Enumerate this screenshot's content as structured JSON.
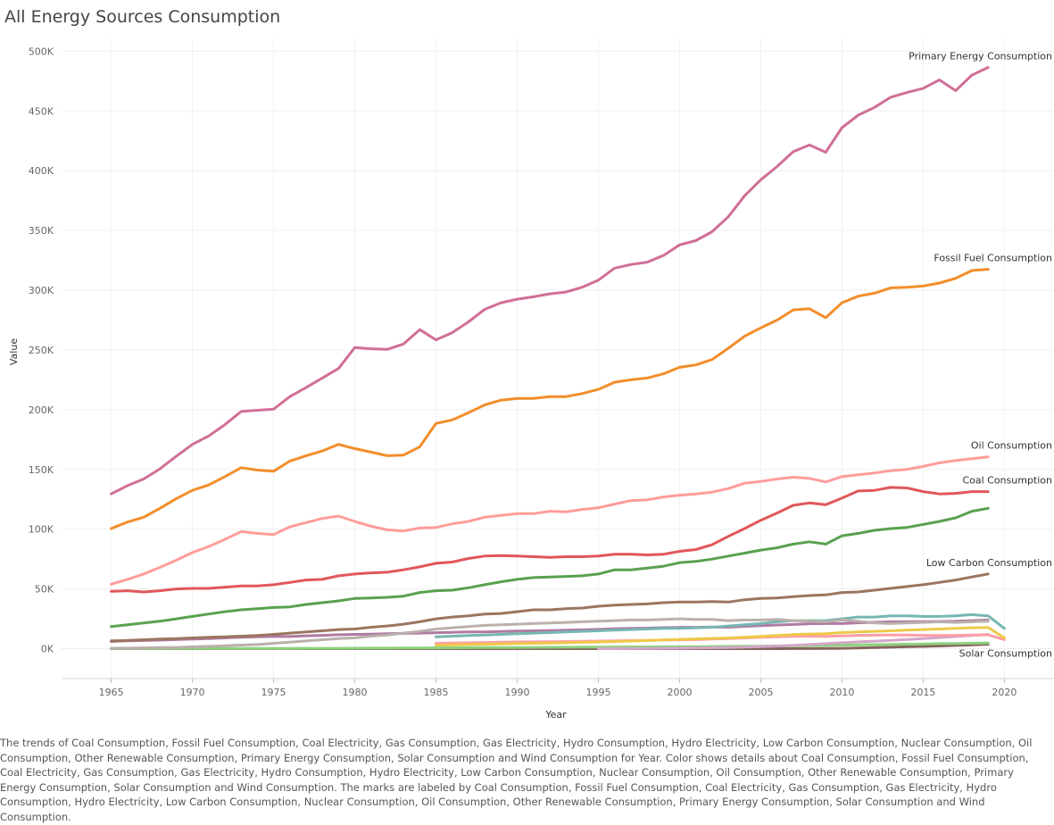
{
  "chart_data": {
    "type": "line",
    "title": "All Energy Sources Consumption",
    "xlabel": "Year",
    "ylabel": "Value",
    "xlim": [
      1962,
      2023
    ],
    "ylim": [
      -25000,
      510000
    ],
    "x_ticks": [
      1965,
      1970,
      1975,
      1980,
      1985,
      1990,
      1995,
      2000,
      2005,
      2010,
      2015,
      2020
    ],
    "y_ticks": [
      0,
      50000,
      100000,
      150000,
      200000,
      250000,
      300000,
      350000,
      400000,
      450000,
      500000
    ],
    "y_tick_labels": [
      "0K",
      "50K",
      "100K",
      "150K",
      "200K",
      "250K",
      "300K",
      "350K",
      "400K",
      "450K",
      "500K"
    ],
    "grid": true,
    "legend": "none (end-of-line labels)",
    "series": [
      {
        "name": "Primary Energy Consumption",
        "color": "#d06f97",
        "label": "Primary Energy Consumption",
        "x_start": 1965,
        "values": [
          129500,
          136500,
          142000,
          150500,
          161000,
          171000,
          178000,
          187500,
          198500,
          199500,
          200500,
          211000,
          218500,
          226500,
          234500,
          252000,
          251000,
          250500,
          255000,
          267000,
          258500,
          264500,
          273500,
          284000,
          289500,
          292500,
          294500,
          297000,
          298500,
          302500,
          308500,
          318500,
          321500,
          323500,
          329000,
          338000,
          341500,
          349000,
          361500,
          379000,
          392500,
          403500,
          416000,
          421500,
          415500,
          436000,
          446500,
          453000,
          461500,
          465500,
          469000,
          476000,
          467000,
          480000,
          486500
        ]
      },
      {
        "name": "Fossil Fuel Consumption",
        "color": "#f28e2b",
        "label": "Fossil Fuel Consumption",
        "x_start": 1965,
        "values": [
          100500,
          106000,
          110000,
          117500,
          125500,
          132500,
          137000,
          144000,
          151500,
          149500,
          148500,
          157000,
          161500,
          165500,
          171000,
          167500,
          164500,
          161500,
          162000,
          169000,
          188500,
          191500,
          197500,
          204000,
          208000,
          209500,
          209500,
          211000,
          211000,
          213500,
          217000,
          223000,
          225000,
          226500,
          230000,
          235500,
          237500,
          242000,
          251500,
          261500,
          268500,
          275000,
          283500,
          284500,
          277000,
          289500,
          295000,
          297500,
          302000,
          302500,
          303500,
          306000,
          310000,
          316500,
          317500
        ]
      },
      {
        "name": "Oil Consumption",
        "color": "#ff9d9a",
        "label": "Oil Consumption",
        "x_start": 1965,
        "values": [
          54000,
          58000,
          62500,
          68000,
          74000,
          80500,
          85500,
          91500,
          98000,
          96500,
          95500,
          102000,
          105500,
          109000,
          111000,
          106500,
          102500,
          99500,
          98500,
          101000,
          101500,
          104500,
          106500,
          110000,
          111500,
          113000,
          113000,
          115000,
          114500,
          116500,
          118000,
          121000,
          124000,
          124500,
          127000,
          128500,
          129500,
          131000,
          134000,
          138500,
          140000,
          142000,
          143500,
          142500,
          139500,
          144000,
          145500,
          147000,
          149000,
          150000,
          152500,
          155500,
          157500,
          159000,
          160500
        ]
      },
      {
        "name": "Coal Consumption",
        "color": "#e15759",
        "label": "Coal Consumption",
        "x_start": 1965,
        "values": [
          48000,
          48500,
          47500,
          48500,
          50000,
          50500,
          50500,
          51500,
          52500,
          52500,
          53500,
          55500,
          57500,
          58000,
          61000,
          62500,
          63500,
          64000,
          66000,
          68500,
          71500,
          72500,
          75500,
          77500,
          78000,
          77500,
          77000,
          76500,
          77000,
          77000,
          77500,
          79000,
          79000,
          78500,
          79000,
          81500,
          83000,
          87000,
          94000,
          100500,
          107500,
          113500,
          120000,
          122000,
          120500,
          126000,
          132000,
          132500,
          135000,
          134500,
          131500,
          129500,
          130000,
          131500,
          131500
        ]
      },
      {
        "name": "Gas Consumption",
        "color": "#59a14f",
        "label": "",
        "x_start": 1965,
        "values": [
          18500,
          20000,
          21500,
          23000,
          25000,
          27000,
          29000,
          31000,
          32500,
          33500,
          34500,
          35000,
          37000,
          38500,
          40000,
          42000,
          42500,
          43000,
          44000,
          47000,
          48500,
          49000,
          51000,
          53500,
          56000,
          58000,
          59500,
          60000,
          60500,
          61000,
          62500,
          66000,
          66000,
          67500,
          69000,
          72000,
          73000,
          75000,
          77500,
          80000,
          82500,
          84500,
          87500,
          89500,
          87500,
          94500,
          96500,
          99000,
          100500,
          101500,
          104000,
          106500,
          109500,
          115000,
          117500
        ]
      },
      {
        "name": "Low Carbon Consumption",
        "color": "#9c755f",
        "label": "Low Carbon Consumption",
        "x_start": 1965,
        "values": [
          6500,
          7000,
          7500,
          8000,
          8500,
          9000,
          9500,
          10000,
          10500,
          11000,
          12000,
          13000,
          14000,
          15000,
          16000,
          16500,
          18000,
          19000,
          20500,
          22500,
          25000,
          26500,
          27500,
          29000,
          29500,
          31000,
          32500,
          32500,
          33500,
          34000,
          35500,
          36500,
          37000,
          37500,
          38500,
          39000,
          39000,
          39500,
          39000,
          41000,
          42000,
          42500,
          43500,
          44500,
          45000,
          47000,
          47500,
          49000,
          50500,
          52000,
          53500,
          55500,
          57500,
          60000,
          62500
        ]
      },
      {
        "name": "Nuclear Consumption",
        "color": "#bab0ac",
        "label": "",
        "x_start": 1965,
        "values": [
          400,
          500,
          700,
          900,
          1100,
          1500,
          2000,
          2500,
          3000,
          3500,
          4500,
          5500,
          6500,
          7500,
          8500,
          9000,
          10500,
          11500,
          13000,
          14500,
          16500,
          17500,
          18500,
          19500,
          20000,
          20500,
          21000,
          21500,
          22000,
          22500,
          23000,
          23500,
          24000,
          24000,
          24500,
          25000,
          24500,
          24500,
          23500,
          24000,
          24000,
          24500,
          23500,
          23000,
          22500,
          24000,
          23000,
          21500,
          21000,
          21500,
          22000,
          22500,
          22000,
          22500,
          23000
        ]
      },
      {
        "name": "Hydro Consumption",
        "color": "#76b7b2",
        "label": "",
        "x_start": 1985,
        "values": [
          10000,
          10500,
          11000,
          11500,
          12000,
          12500,
          13000,
          13500,
          14000,
          14500,
          15000,
          15500,
          16000,
          16500,
          17000,
          17000,
          17500,
          18000,
          19000,
          20000,
          21000,
          22500,
          23500,
          23500,
          23500,
          25000,
          26500,
          26500,
          27500,
          27500,
          27000,
          27000,
          27500,
          28500,
          27500,
          17000
        ]
      },
      {
        "name": "Hydro Electricity",
        "color": "#b07aa1",
        "label": "",
        "x_start": 1965,
        "values": [
          6000,
          6500,
          6800,
          7200,
          7600,
          8000,
          8500,
          9000,
          9500,
          9900,
          10200,
          10200,
          10800,
          11200,
          11700,
          12000,
          12200,
          12500,
          12800,
          13000,
          13400,
          13700,
          14000,
          14000,
          14400,
          14800,
          15000,
          15200,
          15500,
          15800,
          16200,
          16800,
          17000,
          17200,
          17600,
          17900,
          17900,
          18100,
          18000,
          18700,
          19200,
          19800,
          20300,
          20900,
          21000,
          21000,
          21600,
          22100,
          22500,
          22700,
          22600,
          22800,
          23000,
          23500,
          24000
        ]
      },
      {
        "name": "Gas Electricity",
        "color": "#edc948",
        "label": "",
        "x_start": 1985,
        "values": [
          3000,
          3200,
          3500,
          3800,
          4000,
          4300,
          4500,
          4700,
          5000,
          5300,
          5600,
          6000,
          6400,
          6800,
          7300,
          7800,
          8200,
          8600,
          9000,
          9600,
          10300,
          11000,
          11800,
          12300,
          12500,
          13500,
          14000,
          14500,
          15000,
          15500,
          16000,
          16500,
          17000,
          17500,
          17800,
          9000
        ]
      },
      {
        "name": "Coal Electricity",
        "color": "#ff9da7",
        "label": "",
        "x_start": 1985,
        "values": [
          4500,
          4800,
          5000,
          5200,
          5400,
          5600,
          5700,
          5800,
          6000,
          6200,
          6400,
          6600,
          6800,
          7000,
          7200,
          7400,
          7600,
          8000,
          8500,
          9000,
          9500,
          10000,
          10400,
          10500,
          10300,
          10700,
          11200,
          11300,
          11500,
          11400,
          11200,
          11000,
          11200,
          11500,
          11600,
          7500
        ]
      },
      {
        "name": "Wind Consumption",
        "color": "#d4a6c8",
        "label": "",
        "x_start": 1995,
        "values": [
          0,
          0,
          100,
          200,
          300,
          400,
          600,
          800,
          1000,
          1400,
          1700,
          2200,
          2800,
          3500,
          4200,
          5000,
          5700,
          6300,
          7000,
          7700,
          8500,
          9300,
          10200,
          11000,
          12000
        ]
      },
      {
        "name": "Other Renewable Consumption",
        "color": "#8cd17d",
        "label": "",
        "x_start": 1965,
        "values": [
          100,
          100,
          100,
          100,
          150,
          150,
          150,
          200,
          200,
          200,
          250,
          250,
          300,
          300,
          350,
          400,
          450,
          500,
          550,
          600,
          700,
          800,
          850,
          900,
          950,
          1000,
          1100,
          1150,
          1200,
          1300,
          1350,
          1400,
          1500,
          1550,
          1600,
          1700,
          1750,
          1850,
          1950,
          2050,
          2150,
          2300,
          2450,
          2600,
          2800,
          3000,
          3200,
          3400,
          3600,
          3800,
          4000,
          4200,
          4400,
          4600,
          4800
        ]
      },
      {
        "name": "Solar Consumption",
        "color": "#86645b",
        "label": "Solar Consumption",
        "x_start": 1965,
        "values": [
          0,
          0,
          0,
          0,
          0,
          0,
          0,
          0,
          0,
          0,
          0,
          0,
          0,
          0,
          0,
          0,
          0,
          0,
          0,
          0,
          0,
          0,
          0,
          0,
          0,
          0,
          0,
          0,
          0,
          0,
          0,
          0,
          0,
          0,
          0,
          0,
          0,
          10,
          20,
          30,
          40,
          60,
          80,
          120,
          200,
          350,
          600,
          900,
          1200,
          1600,
          1900,
          2300,
          2700,
          3200,
          3700
        ]
      }
    ]
  },
  "caption": "The trends of Coal Consumption, Fossil Fuel Consumption, Coal Electricity, Gas Consumption, Gas Electricity, Hydro Consumption, Hydro Electricity, Low Carbon Consumption, Nuclear Consumption, Oil Consumption, Other Renewable Consumption, Primary Energy Consumption, Solar Consumption and Wind Consumption for Year.  Color shows details about Coal Consumption, Fossil Fuel Consumption, Coal Electricity, Gas Consumption, Gas Electricity, Hydro Consumption, Hydro Electricity, Low Carbon Consumption, Nuclear Consumption, Oil Consumption, Other Renewable Consumption, Primary Energy Consumption, Solar Consumption and Wind Consumption.  The marks are labeled by Coal Consumption, Fossil Fuel Consumption, Coal Electricity, Gas Consumption, Gas Electricity, Hydro Consumption, Hydro Electricity, Low Carbon Consumption, Nuclear Consumption, Oil Consumption, Other Renewable Consumption, Primary Energy Consumption, Solar Consumption and Wind Consumption."
}
